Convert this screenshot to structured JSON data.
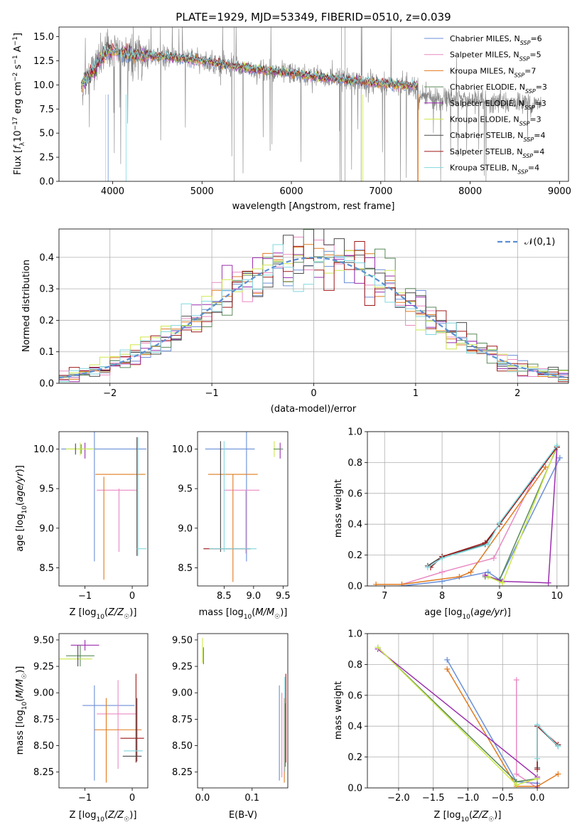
{
  "figure": {
    "title": "PLATE=1929, MJD=53349, FIBERID=0510, z=0.039",
    "colors": {
      "Chabrier MILES": "#6a8fd8",
      "Salpeter MILES": "#e98ac2",
      "Kroupa MILES": "#e07a1f",
      "Chabrier ELODIE": "#5a8a5a",
      "Salpeter ELODIE": "#9b2fae",
      "Kroupa ELODIE": "#cde84c",
      "Chabrier STELIB": "#4a4a4a",
      "Salpeter STELIB": "#a01818",
      "Kroupa STELIB": "#7fd8df",
      "data": "#808080"
    }
  },
  "chart_data": [
    {
      "id": "spectrum",
      "type": "line",
      "xlabel": "wavelength [Angstrom, rest frame]",
      "ylabel": "Flux [f_λ 10^-17 erg cm^-2 s^-1 A^-1]",
      "xlim": [
        3400,
        9100
      ],
      "ylim": [
        0,
        16
      ],
      "xticks": [
        4000,
        5000,
        6000,
        7000,
        8000,
        9000
      ],
      "yticks": [
        0.0,
        2.5,
        5.0,
        7.5,
        10.0,
        12.5,
        15.0
      ],
      "grid": false,
      "legend": "top-right",
      "legend_entries": [
        {
          "name": "Chabrier MILES",
          "nssp": 6
        },
        {
          "name": "Salpeter MILES",
          "nssp": 5
        },
        {
          "name": "Kroupa MILES",
          "nssp": 7
        },
        {
          "name": "Chabrier ELODIE",
          "nssp": 3
        },
        {
          "name": "Salpeter ELODIE",
          "nssp": 3
        },
        {
          "name": "Kroupa ELODIE",
          "nssp": 3
        },
        {
          "name": "Chabrier STELIB",
          "nssp": 4
        },
        {
          "name": "Salpeter STELIB",
          "nssp": 4
        },
        {
          "name": "Kroupa STELIB",
          "nssp": 4
        }
      ],
      "continuum": {
        "x": [
          3650,
          3750,
          3850,
          3950,
          4050,
          4200,
          4400,
          4600,
          4800,
          5000,
          5300,
          5600,
          6000,
          6400,
          6800,
          7200,
          7400
        ],
        "y": [
          10.0,
          11.0,
          12.5,
          13.5,
          13.5,
          13.2,
          13.0,
          12.9,
          12.7,
          12.5,
          12.0,
          11.6,
          11.2,
          10.7,
          10.3,
          10.0,
          9.9
        ]
      },
      "continuum_red": {
        "x": [
          7400,
          7700,
          8000,
          8300,
          8600,
          8800
        ],
        "y": [
          8.8,
          8.6,
          8.4,
          8.2,
          8.1,
          8.0
        ]
      },
      "model_end": 7420
    },
    {
      "id": "residuals",
      "type": "histogram",
      "xlabel": "(data-model)/error",
      "ylabel": "Normed distribution",
      "xlim": [
        -2.5,
        2.5
      ],
      "ylim": [
        0,
        0.49
      ],
      "xticks": [
        -2,
        -1,
        0,
        1,
        2
      ],
      "yticks": [
        0.0,
        0.1,
        0.2,
        0.3,
        0.4
      ],
      "grid": true,
      "legend": "top-right",
      "reference": {
        "name": "𝒩(0,1)",
        "mean": 0,
        "sigma": 1
      }
    },
    {
      "id": "age_vs_Z",
      "type": "errorbar",
      "xlabel": "Z [log10(Z/Z☉)]",
      "ylabel": "age [log10(age/yr)]",
      "xlim": [
        -1.55,
        0.33
      ],
      "ylim": [
        8.27,
        10.22
      ],
      "xticks": [
        -1,
        0
      ],
      "yticks": [
        8.5,
        9.0,
        9.5,
        10.0
      ],
      "grid": false,
      "points": [
        {
          "model": "Chabrier MILES",
          "x": -0.6,
          "y": 10.0,
          "xerr": 0.9,
          "yerr": 0.0
        },
        {
          "model": "Chabrier MILES",
          "x": -0.8,
          "y": 9.5,
          "xerr": 0.0,
          "yerr": 0.92
        },
        {
          "model": "Salpeter MILES",
          "x": -0.33,
          "y": 9.48,
          "xerr": 0.42,
          "yerr": 0.0
        },
        {
          "model": "Salpeter MILES",
          "x": -0.28,
          "y": 9.1,
          "xerr": 0.0,
          "yerr": 0.4
        },
        {
          "model": "Kroupa MILES",
          "x": -0.25,
          "y": 9.68,
          "xerr": 0.53,
          "yerr": 0.0
        },
        {
          "model": "Kroupa MILES",
          "x": -0.6,
          "y": 9.0,
          "xerr": 0.0,
          "yerr": 0.65
        },
        {
          "model": "Chabrier STELIB",
          "x": 0.1,
          "y": 9.4,
          "xerr": 0.0,
          "yerr": 0.75
        },
        {
          "model": "Kroupa STELIB",
          "x": 0.12,
          "y": 9.4,
          "xerr": 0.0,
          "yerr": 0.75
        },
        {
          "model": "Kroupa STELIB",
          "x": 0.2,
          "y": 8.74,
          "xerr": 0.1,
          "yerr": 0.0
        },
        {
          "model": "Salpeter ELODIE",
          "x": -1.0,
          "y": 9.98,
          "xerr": 0.0,
          "yerr": 0.1
        },
        {
          "model": "Chabrier ELODIE",
          "x": -1.08,
          "y": 10.0,
          "xerr": 0.06,
          "yerr": 0.06
        },
        {
          "model": "Kroupa ELODIE",
          "x": -1.1,
          "y": 10.0,
          "xerr": 0.3,
          "yerr": 0.08
        },
        {
          "model": "Chabrier STELIB",
          "x": -1.2,
          "y": 10.0,
          "xerr": 0.0,
          "yerr": 0.07
        }
      ]
    },
    {
      "id": "age_vs_mass",
      "type": "errorbar",
      "xlabel": "mass [log10(M/M☉)]",
      "ylabel": "",
      "xlim": [
        8.05,
        9.58
      ],
      "ylim": [
        8.27,
        10.22
      ],
      "xticks": [
        8.5,
        9.0,
        9.5
      ],
      "yticks": [
        8.5,
        9.0,
        9.5,
        10.0
      ],
      "grid": false,
      "points": [
        {
          "model": "Chabrier MILES",
          "x": 8.6,
          "y": 10.0,
          "xerr": 0.42,
          "yerr": 0.0
        },
        {
          "model": "Chabrier MILES",
          "x": 8.88,
          "y": 9.5,
          "xerr": 0.0,
          "yerr": 0.92
        },
        {
          "model": "Salpeter MILES",
          "x": 8.8,
          "y": 9.48,
          "xerr": 0.3,
          "yerr": 0.0
        },
        {
          "model": "Salpeter MILES",
          "x": 8.87,
          "y": 9.08,
          "xerr": 0.0,
          "yerr": 0.4
        },
        {
          "model": "Kroupa MILES",
          "x": 8.65,
          "y": 9.68,
          "xerr": 0.42,
          "yerr": 0.0
        },
        {
          "model": "Kroupa MILES",
          "x": 8.65,
          "y": 9.0,
          "xerr": 0.0,
          "yerr": 0.68
        },
        {
          "model": "Chabrier STELIB",
          "x": 8.44,
          "y": 9.4,
          "xerr": 0.0,
          "yerr": 0.7
        },
        {
          "model": "Salpeter STELIB",
          "x": 8.55,
          "y": 8.74,
          "xerr": 0.4,
          "yerr": 0.0
        },
        {
          "model": "Kroupa STELIB",
          "x": 8.65,
          "y": 8.74,
          "xerr": 0.4,
          "yerr": 0.0
        },
        {
          "model": "Kroupa STELIB",
          "x": 8.5,
          "y": 9.4,
          "xerr": 0.0,
          "yerr": 0.7
        },
        {
          "model": "Salpeter ELODIE",
          "x": 9.45,
          "y": 9.98,
          "xerr": 0.0,
          "yerr": 0.1
        },
        {
          "model": "Kroupa ELODIE",
          "x": 9.35,
          "y": 10.0,
          "xerr": 0.0,
          "yerr": 0.1
        },
        {
          "model": "Chabrier ELODIE",
          "x": 9.42,
          "y": 10.0,
          "xerr": 0.08,
          "yerr": 0.0
        }
      ]
    },
    {
      "id": "weight_vs_age",
      "type": "line",
      "xlabel": "age [log10(age/yr)]",
      "ylabel": "mass weight",
      "xlim": [
        6.7,
        10.2
      ],
      "ylim": [
        0,
        1.0
      ],
      "xticks": [
        7,
        8,
        9,
        10
      ],
      "yticks": [
        0.0,
        0.2,
        0.4,
        0.6,
        0.8,
        1.0
      ],
      "grid": true,
      "series": [
        {
          "model": "Chabrier MILES",
          "x": [
            7.3,
            8.0,
            8.8,
            9.0,
            10.05
          ],
          "y": [
            0.0,
            0.03,
            0.09,
            0.04,
            0.83
          ]
        },
        {
          "model": "Salpeter MILES",
          "x": [
            7.3,
            8.0,
            8.9,
            9.6
          ],
          "y": [
            0.01,
            0.09,
            0.18,
            0.7
          ]
        },
        {
          "model": "Kroupa MILES",
          "x": [
            6.85,
            7.3,
            8.3,
            8.5,
            9.8
          ],
          "y": [
            0.01,
            0.01,
            0.06,
            0.09,
            0.77
          ]
        },
        {
          "model": "Chabrier ELODIE",
          "x": [
            8.75,
            9.0,
            10.0
          ],
          "y": [
            0.06,
            0.04,
            0.9
          ]
        },
        {
          "model": "Salpeter ELODIE",
          "x": [
            8.75,
            9.05,
            9.85,
            10.0
          ],
          "y": [
            0.07,
            0.03,
            0.02,
            0.9
          ]
        },
        {
          "model": "Kroupa ELODIE",
          "x": [
            8.8,
            9.05,
            10.0
          ],
          "y": [
            0.06,
            0.02,
            0.91
          ]
        },
        {
          "model": "Chabrier STELIB",
          "x": [
            7.75,
            8.0,
            8.75,
            9.0,
            10.0
          ],
          "y": [
            0.13,
            0.19,
            0.27,
            0.4,
            0.9
          ]
        },
        {
          "model": "Salpeter STELIB",
          "x": [
            7.8,
            8.0,
            8.75,
            9.0,
            10.0
          ],
          "y": [
            0.12,
            0.19,
            0.28,
            0.4,
            0.9
          ]
        },
        {
          "model": "Kroupa STELIB",
          "x": [
            7.75,
            8.0,
            8.8,
            9.0,
            10.0
          ],
          "y": [
            0.12,
            0.18,
            0.27,
            0.41,
            0.91
          ]
        }
      ]
    },
    {
      "id": "mass_vs_Z",
      "type": "errorbar",
      "xlabel": "Z [log10(Z/Z☉)]",
      "ylabel": "mass [log10(M/M☉)]",
      "xlim": [
        -1.55,
        0.33
      ],
      "ylim": [
        8.1,
        9.56
      ],
      "xticks": [
        -1,
        0
      ],
      "yticks": [
        8.25,
        8.5,
        8.75,
        9.0,
        9.25,
        9.5
      ],
      "grid": false,
      "points": [
        {
          "model": "Salpeter ELODIE",
          "x": -1.0,
          "y": 9.45,
          "xerr": 0.3,
          "yerr": 0.05
        },
        {
          "model": "Chabrier ELODIE",
          "x": -1.1,
          "y": 9.35,
          "xerr": 0.3,
          "yerr": 0.1
        },
        {
          "model": "Kroupa ELODIE",
          "x": -1.2,
          "y": 9.32,
          "xerr": 0.35,
          "yerr": 0.0
        },
        {
          "model": "Chabrier STELIB",
          "x": -1.15,
          "y": 9.35,
          "xerr": 0.0,
          "yerr": 0.1
        },
        {
          "model": "Chabrier MILES",
          "x": -0.8,
          "y": 8.62,
          "xerr": 0.0,
          "yerr": 0.45
        },
        {
          "model": "Chabrier MILES",
          "x": -0.5,
          "y": 8.88,
          "xerr": 0.55,
          "yerr": 0.0
        },
        {
          "model": "Salpeter MILES",
          "x": -0.33,
          "y": 8.8,
          "xerr": 0.42,
          "yerr": 0.0
        },
        {
          "model": "Salpeter MILES",
          "x": -0.3,
          "y": 8.7,
          "xerr": 0.0,
          "yerr": 0.42
        },
        {
          "model": "Kroupa MILES",
          "x": -0.55,
          "y": 8.55,
          "xerr": 0.0,
          "yerr": 0.4
        },
        {
          "model": "Kroupa MILES",
          "x": -0.3,
          "y": 8.65,
          "xerr": 0.5,
          "yerr": 0.0
        },
        {
          "model": "Salpeter STELIB",
          "x": 0.08,
          "y": 8.76,
          "xerr": 0.0,
          "yerr": 0.42
        },
        {
          "model": "Salpeter STELIB",
          "x": 0.0,
          "y": 8.57,
          "xerr": 0.25,
          "yerr": 0.0
        },
        {
          "model": "Chabrier STELIB",
          "x": 0.1,
          "y": 8.65,
          "xerr": 0.0,
          "yerr": 0.3
        },
        {
          "model": "Kroupa STELIB",
          "x": 0.02,
          "y": 8.45,
          "xerr": 0.2,
          "yerr": 0.0
        },
        {
          "model": "Chabrier STELIB",
          "x": 0.0,
          "y": 8.4,
          "xerr": 0.2,
          "yerr": 0.0
        }
      ]
    },
    {
      "id": "mass_vs_ebv",
      "type": "errorbar",
      "xlabel": "E(B-V)",
      "ylabel": "",
      "xlim": [
        -0.01,
        0.172
      ],
      "ylim": [
        8.1,
        9.56
      ],
      "xticks": [
        0.0,
        0.1
      ],
      "yticks": [
        8.25,
        8.5,
        8.75,
        9.0,
        9.25,
        9.5
      ],
      "grid": false,
      "points": [
        {
          "model": "Kroupa ELODIE",
          "x": 0.0,
          "y": 9.4,
          "xerr": 0.0,
          "yerr": 0.12
        },
        {
          "model": "Chabrier ELODIE",
          "x": 0.002,
          "y": 9.35,
          "xerr": 0.0,
          "yerr": 0.08
        },
        {
          "model": "Chabrier MILES",
          "x": 0.155,
          "y": 8.62,
          "xerr": 0.0,
          "yerr": 0.45
        },
        {
          "model": "Salpeter MILES",
          "x": 0.16,
          "y": 8.6,
          "xerr": 0.0,
          "yerr": 0.4
        },
        {
          "model": "Kroupa MILES",
          "x": 0.165,
          "y": 8.55,
          "xerr": 0.0,
          "yerr": 0.4
        },
        {
          "model": "Salpeter STELIB",
          "x": 0.168,
          "y": 8.76,
          "xerr": 0.0,
          "yerr": 0.42
        },
        {
          "model": "Chabrier STELIB",
          "x": 0.167,
          "y": 8.6,
          "xerr": 0.0,
          "yerr": 0.3
        },
        {
          "model": "Kroupa STELIB",
          "x": 0.166,
          "y": 8.7,
          "xerr": 0.0,
          "yerr": 0.45
        }
      ]
    },
    {
      "id": "weight_vs_Z",
      "type": "line",
      "xlabel": "Z [log10(Z/Z☉)]",
      "ylabel": "mass weight",
      "xlim": [
        -2.45,
        0.45
      ],
      "ylim": [
        0,
        1.0
      ],
      "xticks": [
        -2.0,
        -1.5,
        -1.0,
        -0.5,
        0.0
      ],
      "yticks": [
        0.0,
        0.2,
        0.4,
        0.6,
        0.8,
        1.0
      ],
      "grid": true,
      "series": [
        {
          "model": "Chabrier MILES",
          "x": [
            -1.3,
            -0.3,
            0.0
          ],
          "y": [
            0.83,
            0.04,
            0.03
          ]
        },
        {
          "model": "Salpeter MILES",
          "x": [
            -0.3,
            -0.3,
            0.0
          ],
          "y": [
            0.7,
            0.09,
            0.0
          ]
        },
        {
          "model": "Kroupa MILES",
          "x": [
            -1.3,
            -0.3,
            0.0,
            0.3
          ],
          "y": [
            0.77,
            0.01,
            0.01,
            0.09
          ]
        },
        {
          "model": "Chabrier ELODIE",
          "x": [
            -2.3,
            -0.3,
            0.0
          ],
          "y": [
            0.91,
            0.04,
            0.06
          ]
        },
        {
          "model": "Salpeter ELODIE",
          "x": [
            -2.3,
            0.0,
            0.0
          ],
          "y": [
            0.9,
            0.07,
            0.0
          ]
        },
        {
          "model": "Kroupa ELODIE",
          "x": [
            -2.3,
            -0.3,
            0.0
          ],
          "y": [
            0.91,
            0.02,
            0.06
          ]
        },
        {
          "model": "Chabrier STELIB",
          "x": [
            0.0,
            0.0,
            0.3
          ],
          "y": [
            0.13,
            0.4,
            0.27
          ]
        },
        {
          "model": "Salpeter STELIB",
          "x": [
            0.0,
            0.0,
            0.3
          ],
          "y": [
            0.12,
            0.4,
            0.28
          ]
        },
        {
          "model": "Kroupa STELIB",
          "x": [
            0.0,
            0.0,
            0.3
          ],
          "y": [
            0.19,
            0.41,
            0.27
          ]
        }
      ]
    }
  ]
}
